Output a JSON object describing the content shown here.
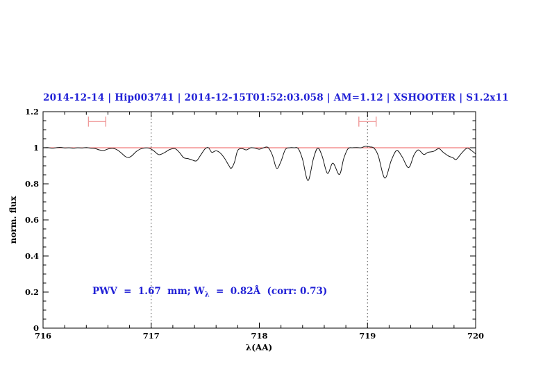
{
  "title": {
    "text": "2014-12-14 | Hip003741 | 2014-12-15T01:52:03.058 | AM=1.12 | XSHOOTER | S1.2x11",
    "color": "#2121d6"
  },
  "annotation": {
    "prefix": "PWV  =  1.67  mm; W",
    "sub": "λ",
    "suffix": "  =  0.82Å  (corr: 0.73)",
    "color": "#2121d6"
  },
  "chart_data": {
    "type": "line",
    "title": "2014-12-14 | Hip003741 | 2014-12-15T01:52:03.058 | AM=1.12 | XSHOOTER | S1.2x11",
    "xlabel": "λ(AA)",
    "ylabel": "norm. flux",
    "xlim": [
      716,
      720
    ],
    "ylim": [
      0,
      1.2
    ],
    "grid": "off",
    "legend": "none",
    "x_major_ticks": [
      716,
      717,
      718,
      719,
      720
    ],
    "x_tick_labels": [
      "716",
      "717",
      "718",
      "719",
      "720"
    ],
    "x_minor_step": 0.2,
    "y_major_ticks": [
      0,
      0.2,
      0.4,
      0.6,
      0.8,
      1,
      1.2
    ],
    "y_tick_labels": [
      "0",
      "0.2",
      "0.4",
      "0.6",
      "0.8",
      "1",
      "1.2"
    ],
    "y_minor_step": 0.05,
    "guide_lines_x": [
      717,
      719
    ],
    "guide_line_color": "#444444",
    "reference_line": {
      "y": 1.0,
      "color": "#ee5a5a"
    },
    "markers": [
      {
        "type": "errorbar-h",
        "x": 716.5,
        "y": 1.145,
        "half_width": 0.08,
        "cap_half_height": 0.028,
        "color": "#f09b9b"
      },
      {
        "type": "errorbar-h",
        "x": 719.0,
        "y": 1.145,
        "half_width": 0.08,
        "cap_half_height": 0.028,
        "color": "#f09b9b"
      }
    ],
    "series": [
      {
        "name": "normalized-spectrum",
        "color": "#161616",
        "points": [
          [
            716.0,
            1.0
          ],
          [
            716.04,
            1.001
          ],
          [
            716.08,
            0.998
          ],
          [
            716.12,
            1.0
          ],
          [
            716.16,
            1.002
          ],
          [
            716.2,
            0.999
          ],
          [
            716.24,
            1.0
          ],
          [
            716.28,
            0.998
          ],
          [
            716.32,
            1.0
          ],
          [
            716.36,
            0.999
          ],
          [
            716.4,
            1.001
          ],
          [
            716.44,
            0.998
          ],
          [
            716.48,
            0.996
          ],
          [
            716.52,
            0.988
          ],
          [
            716.56,
            0.985
          ],
          [
            716.6,
            0.993
          ],
          [
            716.64,
            0.997
          ],
          [
            716.68,
            0.99
          ],
          [
            716.72,
            0.973
          ],
          [
            716.76,
            0.952
          ],
          [
            716.79,
            0.946
          ],
          [
            716.82,
            0.955
          ],
          [
            716.86,
            0.978
          ],
          [
            716.9,
            0.993
          ],
          [
            716.94,
            0.999
          ],
          [
            716.98,
            0.998
          ],
          [
            717.02,
            0.985
          ],
          [
            717.07,
            0.962
          ],
          [
            717.12,
            0.972
          ],
          [
            717.17,
            0.99
          ],
          [
            717.22,
            0.995
          ],
          [
            717.26,
            0.975
          ],
          [
            717.3,
            0.945
          ],
          [
            717.34,
            0.94
          ],
          [
            717.38,
            0.932
          ],
          [
            717.42,
            0.928
          ],
          [
            717.46,
            0.962
          ],
          [
            717.5,
            0.995
          ],
          [
            717.53,
            1.0
          ],
          [
            717.56,
            0.975
          ],
          [
            717.6,
            0.983
          ],
          [
            717.64,
            0.97
          ],
          [
            717.68,
            0.94
          ],
          [
            717.72,
            0.9
          ],
          [
            717.74,
            0.886
          ],
          [
            717.77,
            0.92
          ],
          [
            717.8,
            0.985
          ],
          [
            717.84,
            0.995
          ],
          [
            717.88,
            0.988
          ],
          [
            717.92,
            1.0
          ],
          [
            717.96,
            0.998
          ],
          [
            718.0,
            0.992
          ],
          [
            718.04,
            1.0
          ],
          [
            718.08,
            1.002
          ],
          [
            718.12,
            0.96
          ],
          [
            718.16,
            0.886
          ],
          [
            718.2,
            0.925
          ],
          [
            718.24,
            0.99
          ],
          [
            718.28,
            1.0
          ],
          [
            718.32,
            1.0
          ],
          [
            718.36,
            0.995
          ],
          [
            718.4,
            0.935
          ],
          [
            718.45,
            0.818
          ],
          [
            718.5,
            0.94
          ],
          [
            718.54,
            0.998
          ],
          [
            718.58,
            0.955
          ],
          [
            718.63,
            0.858
          ],
          [
            718.68,
            0.915
          ],
          [
            718.74,
            0.852
          ],
          [
            718.78,
            0.94
          ],
          [
            718.82,
            0.995
          ],
          [
            718.86,
            1.0
          ],
          [
            718.9,
            1.001
          ],
          [
            718.94,
            1.0
          ],
          [
            718.98,
            1.008
          ],
          [
            719.02,
            1.005
          ],
          [
            719.06,
            0.998
          ],
          [
            719.1,
            0.955
          ],
          [
            719.16,
            0.832
          ],
          [
            719.22,
            0.93
          ],
          [
            719.27,
            0.985
          ],
          [
            719.32,
            0.95
          ],
          [
            719.38,
            0.89
          ],
          [
            719.43,
            0.96
          ],
          [
            719.47,
            0.988
          ],
          [
            719.52,
            0.963
          ],
          [
            719.56,
            0.975
          ],
          [
            719.61,
            0.98
          ],
          [
            719.66,
            0.995
          ],
          [
            719.7,
            0.975
          ],
          [
            719.75,
            0.954
          ],
          [
            719.79,
            0.945
          ],
          [
            719.82,
            0.935
          ],
          [
            719.87,
            0.97
          ],
          [
            719.92,
            0.998
          ],
          [
            719.96,
            0.985
          ],
          [
            720.0,
            0.966
          ]
        ]
      }
    ]
  }
}
